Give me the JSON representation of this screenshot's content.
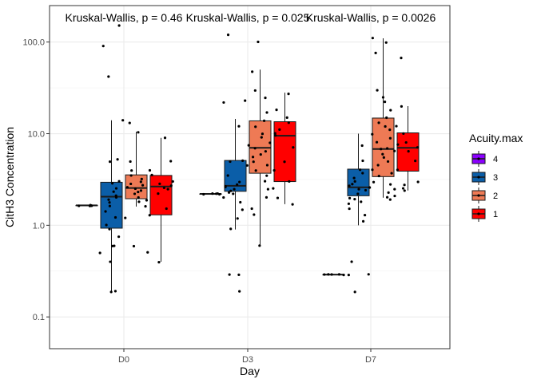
{
  "chart_data": {
    "type": "box",
    "xlabel": "Day",
    "ylabel": "CitH3 Concentration",
    "y_scale": "log10",
    "ylim": [
      0.045,
      250
    ],
    "grid": true,
    "y_ticks": [
      0.1,
      1.0,
      10.0,
      100.0
    ],
    "y_tick_labels": [
      "0.1",
      "1.0",
      "10.0",
      "100.0"
    ],
    "categories": [
      "D0",
      "D3",
      "D7"
    ],
    "legend": {
      "title": "Acuity.max",
      "position": "right",
      "entries": [
        {
          "label": "4",
          "color": "#8B00FF"
        },
        {
          "label": "3",
          "color": "#0B5EA8"
        },
        {
          "label": "2",
          "color": "#EE7A55"
        },
        {
          "label": "1",
          "color": "#FF0000"
        }
      ]
    },
    "annotations": [
      {
        "category": "D0",
        "text": "Kruskal-Wallis, p = 0.46"
      },
      {
        "category": "D3",
        "text": "Kruskal-Wallis, p = 0.025"
      },
      {
        "category": "D7",
        "text": "Kruskal-Wallis, p = 0.0026"
      }
    ],
    "series": [
      {
        "name": "4",
        "boxes": [
          {
            "category": "D0",
            "q1": 1.65,
            "median": 1.65,
            "q3": 1.65,
            "whisker_low": 1.65,
            "whisker_high": 1.65
          },
          {
            "category": "D3",
            "q1": 2.2,
            "median": 2.2,
            "q3": 2.2,
            "whisker_low": 2.2,
            "whisker_high": 2.2
          },
          {
            "category": "D7",
            "q1": 0.29,
            "median": 0.29,
            "q3": 0.29,
            "whisker_low": 0.29,
            "whisker_high": 0.29
          }
        ],
        "points": [
          {
            "category": "D0",
            "values": [
              1.65,
              1.65,
              1.65,
              1.65,
              1.65
            ]
          },
          {
            "category": "D3",
            "values": [
              2.2,
              2.2,
              2.2,
              2.2,
              2.2
            ]
          },
          {
            "category": "D7",
            "values": [
              0.29,
              0.29,
              0.29,
              0.29,
              0.29
            ]
          }
        ]
      },
      {
        "name": "3",
        "boxes": [
          {
            "category": "D0",
            "q1": 0.93,
            "median": 2.05,
            "q3": 2.95,
            "whisker_low": 0.19,
            "whisker_high": 14
          },
          {
            "category": "D3",
            "q1": 2.35,
            "median": 2.7,
            "q3": 5.1,
            "whisker_low": 0.9,
            "whisker_high": 14.5
          },
          {
            "category": "D7",
            "q1": 2.1,
            "median": 2.6,
            "q3": 4.1,
            "whisker_low": 1.0,
            "whisker_high": 10.0
          }
        ],
        "points": [
          {
            "category": "D0",
            "values": [
              150,
              90,
              42,
              14,
              5.2,
              5.0,
              3.0,
              2.9,
              2.5,
              2.3,
              2.1,
              2.0,
              1.9,
              1.8,
              1.6,
              1.4,
              1.2,
              1.0,
              0.9,
              0.75,
              0.6,
              0.6,
              0.5,
              0.4,
              0.19,
              0.19
            ]
          },
          {
            "category": "D3",
            "values": [
              120,
              23,
              22,
              12,
              5.1,
              5.0,
              4.5,
              3.5,
              3.0,
              2.8,
              2.7,
              2.6,
              2.5,
              2.4,
              2.3,
              2.2,
              2.0,
              1.8,
              1.5,
              1.2,
              0.9,
              0.29,
              0.29,
              0.19
            ]
          },
          {
            "category": "D7",
            "values": [
              7.5,
              5.0,
              4.0,
              3.7,
              3.3,
              3.0,
              2.8,
              2.7,
              2.6,
              2.5,
              2.4,
              2.2,
              2.0,
              1.9,
              1.8,
              1.7,
              1.5,
              1.3,
              1.1,
              0.4,
              0.29,
              0.29,
              0.19
            ]
          }
        ]
      },
      {
        "name": "2",
        "boxes": [
          {
            "category": "D0",
            "q1": 1.95,
            "median": 2.55,
            "q3": 3.55,
            "whisker_low": 1.6,
            "whisker_high": 10.5
          },
          {
            "category": "D3",
            "q1": 3.7,
            "median": 7.0,
            "q3": 13.8,
            "whisker_low": 0.6,
            "whisker_high": 50
          },
          {
            "category": "D7",
            "q1": 3.4,
            "median": 6.8,
            "q3": 14.8,
            "whisker_low": 2.0,
            "whisker_high": 110
          }
        ],
        "points": [
          {
            "category": "D0",
            "values": [
              13,
              10.5,
              5.0,
              4.0,
              3.5,
              3.2,
              3.0,
              2.8,
              2.7,
              2.6,
              2.5,
              2.4,
              2.3,
              2.2,
              2.0,
              1.9,
              1.8,
              1.6,
              1.2,
              0.6,
              0.5
            ]
          },
          {
            "category": "D3",
            "values": [
              100,
              48,
              30,
              25,
              17,
              14,
              12,
              10,
              9,
              8,
              7.5,
              7.0,
              6.5,
              6.0,
              5.5,
              5.0,
              4.5,
              4.0,
              3.5,
              3.0,
              2.5,
              2.0,
              1.5,
              1.3,
              0.6
            ]
          },
          {
            "category": "D7",
            "values": [
              110,
              100,
              75,
              30,
              25,
              22,
              18,
              15,
              13,
              12,
              11,
              10,
              9,
              8,
              7,
              6.8,
              6.5,
              6.0,
              5.5,
              5.0,
              4.5,
              4.0,
              3.7,
              3.4,
              3.0,
              2.8,
              2.5,
              2.3,
              2.1,
              2.0,
              1.9
            ]
          }
        ]
      },
      {
        "name": "1",
        "boxes": [
          {
            "category": "D0",
            "q1": 1.3,
            "median": 2.65,
            "q3": 3.5,
            "whisker_low": 0.4,
            "whisker_high": 9.0
          },
          {
            "category": "D3",
            "q1": 3.0,
            "median": 9.5,
            "q3": 13.5,
            "whisker_low": 1.7,
            "whisker_high": 28
          },
          {
            "category": "D7",
            "q1": 3.9,
            "median": 7.0,
            "q3": 10.2,
            "whisker_low": 2.4,
            "whisker_high": 20
          }
        ],
        "points": [
          {
            "category": "D0",
            "values": [
              9,
              5,
              4,
              3.5,
              3.0,
              2.8,
              2.7,
              2.6,
              2.5,
              2.2,
              1.5,
              1.3,
              0.4
            ]
          },
          {
            "category": "D3",
            "values": [
              27,
              18,
              15,
              13,
              11,
              10,
              9.5,
              7,
              5,
              4,
              3,
              2.5,
              2,
              1.7
            ]
          },
          {
            "category": "D7",
            "values": [
              67,
              20,
              12,
              10,
              8,
              7.5,
              7,
              6.5,
              5,
              4,
              3,
              2.8,
              2.5,
              2.4
            ]
          }
        ]
      }
    ]
  }
}
